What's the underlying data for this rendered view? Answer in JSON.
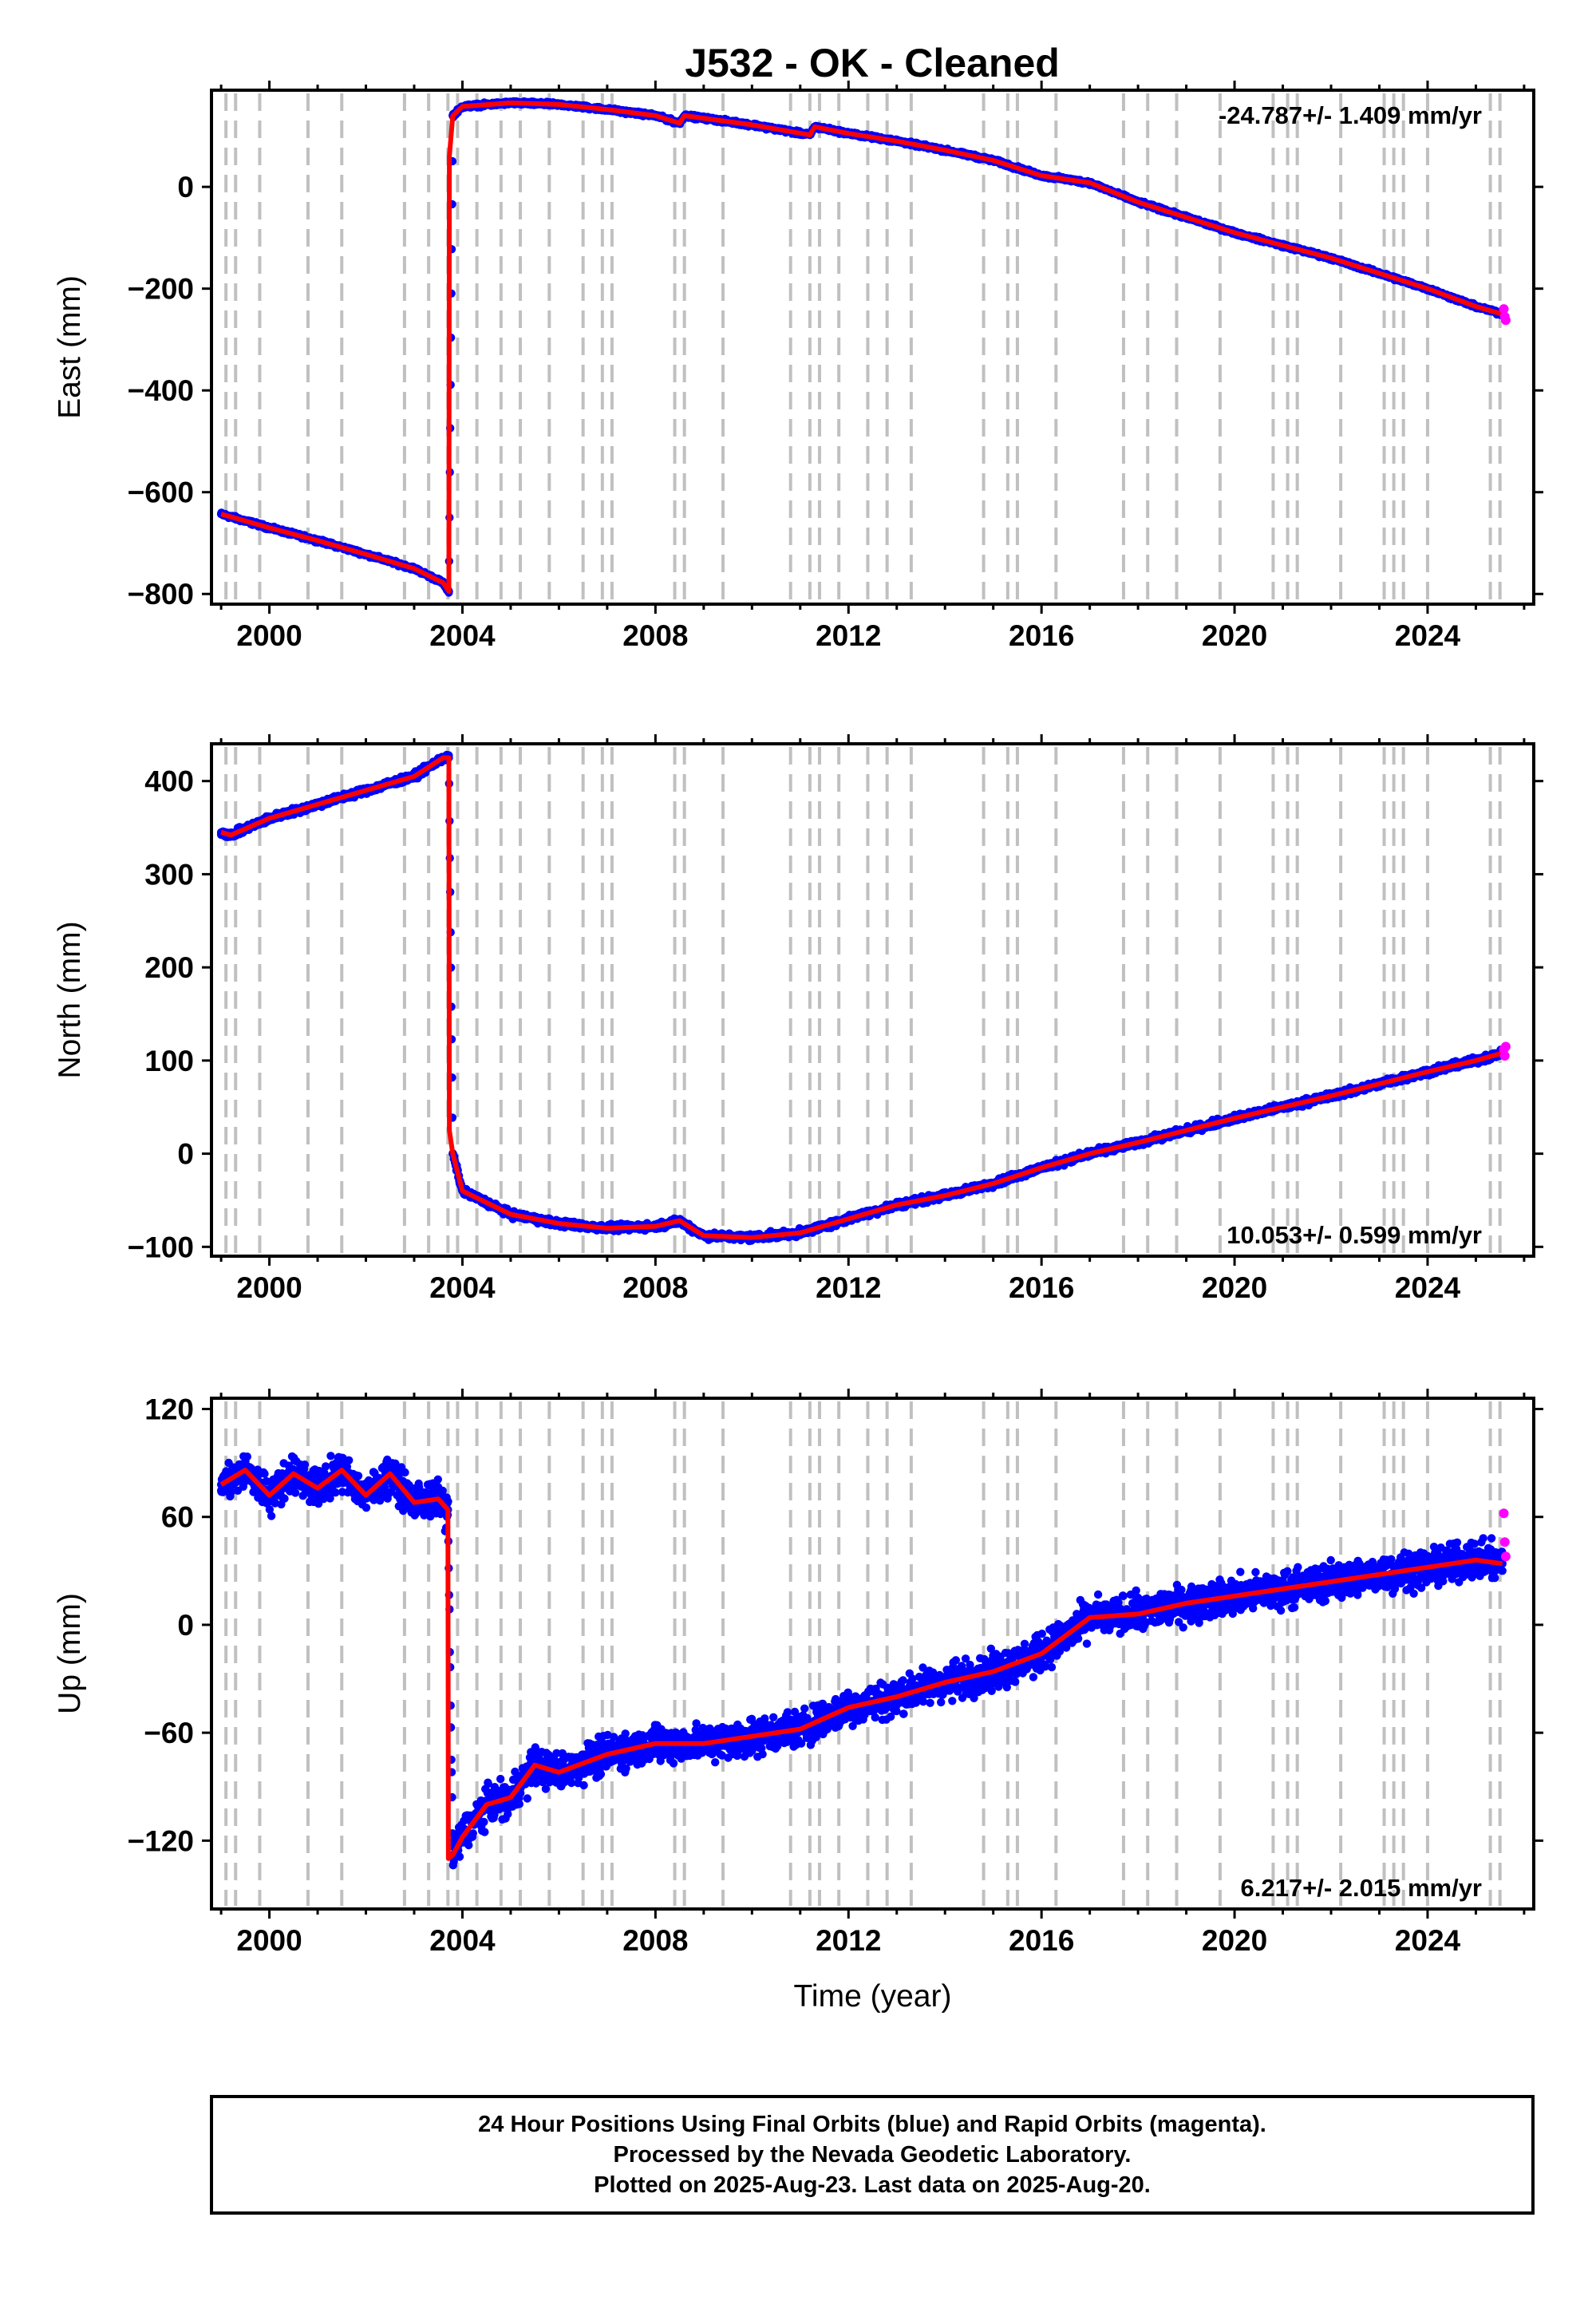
{
  "chart_data": [
    {
      "type": "scatter",
      "title": "J532  - OK - Cleaned",
      "xlabel": "",
      "ylabel": "East (mm)",
      "xlim": [
        1998.8,
        2026.2
      ],
      "ylim": [
        -820,
        190
      ],
      "x_ticks": [
        "2000",
        "2004",
        "2008",
        "2012",
        "2016",
        "2020",
        "2024"
      ],
      "y_ticks": [
        "0",
        "−200",
        "−400",
        "−600",
        "−800"
      ],
      "y_tick_values": [
        0,
        -200,
        -400,
        -600,
        -800
      ],
      "rate_label": "-24.787+/- 1.409 mm/yr",
      "rate_position": "top-right",
      "series": [
        {
          "name": "Final Orbits",
          "color": "#0000ff",
          "style": "points",
          "x": [
            1999.0,
            2000.0,
            2001.0,
            2002.0,
            2003.0,
            2003.6,
            2003.72,
            2003.8,
            2004.0,
            2005.0,
            2006.0,
            2007.0,
            2008.0,
            2008.5,
            2008.6,
            2010.0,
            2011.2,
            2011.3,
            2012.0,
            2013.0,
            2014.0,
            2015.0,
            2016.0,
            2017.0,
            2018.0,
            2019.0,
            2020.0,
            2021.0,
            2022.0,
            2023.0,
            2024.0,
            2025.0,
            2025.55
          ],
          "y": [
            -643,
            -670,
            -695,
            -722,
            -750,
            -778,
            -795,
            140,
            158,
            165,
            162,
            152,
            140,
            125,
            140,
            122,
            102,
            118,
            105,
            90,
            72,
            52,
            22,
            8,
            -30,
            -60,
            -90,
            -115,
            -140,
            -170,
            -200,
            -235,
            -250
          ]
        },
        {
          "name": "Rapid Orbits",
          "color": "#ff00ff",
          "style": "points",
          "x": [
            2025.58,
            2025.6,
            2025.62
          ],
          "y": [
            -240,
            -255,
            -262
          ]
        },
        {
          "name": "Model",
          "color": "#ff0000",
          "style": "line",
          "x": [
            1999.0,
            2000.0,
            2001.0,
            2002.0,
            2003.0,
            2003.6,
            2003.72,
            2003.73,
            2003.8,
            2004.0,
            2005.0,
            2006.0,
            2007.0,
            2008.0,
            2008.5,
            2008.6,
            2010.0,
            2011.2,
            2011.3,
            2012.0,
            2013.0,
            2014.0,
            2015.0,
            2016.0,
            2017.0,
            2018.0,
            2019.0,
            2020.0,
            2021.0,
            2022.0,
            2023.0,
            2024.0,
            2025.0,
            2025.55
          ],
          "y": [
            -643,
            -670,
            -695,
            -722,
            -750,
            -778,
            -795,
            60,
            140,
            158,
            165,
            162,
            152,
            140,
            125,
            140,
            122,
            102,
            118,
            105,
            90,
            72,
            52,
            22,
            8,
            -30,
            -60,
            -90,
            -115,
            -140,
            -170,
            -200,
            -235,
            -250
          ]
        }
      ],
      "vlines": [
        1999.1,
        1999.3,
        1999.8,
        2000.8,
        2001.5,
        2002.8,
        2003.3,
        2003.7,
        2003.9,
        2004.3,
        2004.8,
        2005.2,
        2005.8,
        2006.5,
        2006.9,
        2007.1,
        2008.4,
        2008.6,
        2009.4,
        2010.8,
        2011.2,
        2011.4,
        2011.8,
        2012.4,
        2012.8,
        2013.3,
        2014.8,
        2015.3,
        2015.5,
        2016.3,
        2017.7,
        2018.2,
        2018.8,
        2019.7,
        2020.8,
        2021.1,
        2021.3,
        2022.2,
        2023.1,
        2023.3,
        2023.5,
        2024.0,
        2025.3,
        2025.5
      ],
      "grid": false
    },
    {
      "type": "scatter",
      "xlabel": "",
      "ylabel": "North (mm)",
      "xlim": [
        1998.8,
        2026.2
      ],
      "ylim": [
        -110,
        440
      ],
      "x_ticks": [
        "2000",
        "2004",
        "2008",
        "2012",
        "2016",
        "2020",
        "2024"
      ],
      "y_ticks": [
        "400",
        "300",
        "200",
        "100",
        "0",
        "−100"
      ],
      "y_tick_values": [
        400,
        300,
        200,
        100,
        0,
        -100
      ],
      "rate_label": "10.053+/- 0.599 mm/yr",
      "rate_position": "bottom-right",
      "series": [
        {
          "name": "Final Orbits",
          "color": "#0000ff",
          "style": "points",
          "x": [
            1999.0,
            1999.2,
            2000.0,
            2001.0,
            2002.0,
            2003.0,
            2003.6,
            2003.72,
            2003.8,
            2004.0,
            2005.0,
            2006.0,
            2007.0,
            2008.0,
            2008.5,
            2009.0,
            2010.0,
            2011.0,
            2012.0,
            2013.0,
            2014.0,
            2015.0,
            2016.0,
            2017.0,
            2018.0,
            2019.0,
            2020.0,
            2021.0,
            2022.0,
            2023.0,
            2024.0,
            2025.0,
            2025.55
          ],
          "y": [
            345,
            342,
            360,
            375,
            390,
            405,
            425,
            425,
            0,
            -40,
            -65,
            -75,
            -80,
            -78,
            -72,
            -88,
            -90,
            -85,
            -70,
            -55,
            -45,
            -32,
            -15,
            0,
            12,
            25,
            38,
            50,
            62,
            75,
            88,
            100,
            108
          ]
        },
        {
          "name": "Rapid Orbits",
          "color": "#ff00ff",
          "style": "points",
          "x": [
            2025.58,
            2025.6,
            2025.62
          ],
          "y": [
            112,
            105,
            115
          ]
        },
        {
          "name": "Model",
          "color": "#ff0000",
          "style": "line",
          "x": [
            1999.0,
            1999.2,
            2000.0,
            2001.0,
            2002.0,
            2003.0,
            2003.6,
            2003.72,
            2003.73,
            2003.8,
            2004.0,
            2005.0,
            2006.0,
            2007.0,
            2008.0,
            2008.5,
            2009.0,
            2010.0,
            2011.0,
            2012.0,
            2013.0,
            2014.0,
            2015.0,
            2016.0,
            2017.0,
            2018.0,
            2019.0,
            2020.0,
            2021.0,
            2022.0,
            2023.0,
            2024.0,
            2025.0,
            2025.55
          ],
          "y": [
            345,
            342,
            360,
            375,
            390,
            405,
            425,
            425,
            25,
            0,
            -40,
            -65,
            -75,
            -80,
            -78,
            -72,
            -88,
            -90,
            -85,
            -70,
            -55,
            -45,
            -32,
            -15,
            0,
            12,
            25,
            38,
            50,
            62,
            75,
            88,
            100,
            108
          ]
        }
      ],
      "vlines": [
        1999.1,
        1999.3,
        1999.8,
        2000.8,
        2001.5,
        2002.8,
        2003.3,
        2003.7,
        2003.9,
        2004.3,
        2004.8,
        2005.2,
        2005.8,
        2006.5,
        2006.9,
        2007.1,
        2008.4,
        2008.6,
        2009.4,
        2010.8,
        2011.2,
        2011.4,
        2011.8,
        2012.4,
        2012.8,
        2013.3,
        2014.8,
        2015.3,
        2015.5,
        2016.3,
        2017.7,
        2018.2,
        2018.8,
        2019.7,
        2020.8,
        2021.1,
        2021.3,
        2022.2,
        2023.1,
        2023.3,
        2023.5,
        2024.0,
        2025.3,
        2025.5
      ],
      "grid": false
    },
    {
      "type": "scatter",
      "xlabel": "Time (year)",
      "ylabel": "Up (mm)",
      "xlim": [
        1998.8,
        2026.2
      ],
      "ylim": [
        -158,
        126
      ],
      "x_ticks": [
        "2000",
        "2004",
        "2008",
        "2012",
        "2016",
        "2020",
        "2024"
      ],
      "y_ticks": [
        "120",
        "60",
        "0",
        "−60",
        "−120"
      ],
      "y_tick_values": [
        120,
        60,
        0,
        -60,
        -120
      ],
      "rate_label": "6.217+/- 2.015 mm/yr",
      "rate_position": "bottom-right",
      "series": [
        {
          "name": "Final Orbits",
          "color": "#0000ff",
          "style": "points",
          "x": [
            1999.0,
            1999.5,
            2000.0,
            2000.5,
            2001.0,
            2001.5,
            2002.0,
            2002.5,
            2003.0,
            2003.5,
            2003.7,
            2003.8,
            2004.0,
            2004.5,
            2005.0,
            2005.5,
            2006.0,
            2007.0,
            2008.0,
            2009.0,
            2010.0,
            2011.0,
            2012.0,
            2013.0,
            2014.0,
            2015.0,
            2016.0,
            2017.0,
            2018.0,
            2019.0,
            2020.0,
            2021.0,
            2022.0,
            2023.0,
            2024.0,
            2025.0,
            2025.55
          ],
          "y": [
            78,
            86,
            72,
            84,
            76,
            86,
            72,
            84,
            68,
            70,
            64,
            -128,
            -118,
            -100,
            -96,
            -78,
            -82,
            -72,
            -66,
            -66,
            -62,
            -58,
            -46,
            -40,
            -32,
            -26,
            -16,
            4,
            6,
            12,
            16,
            20,
            24,
            28,
            32,
            36,
            34
          ]
        },
        {
          "name": "Rapid Orbits",
          "color": "#ff00ff",
          "style": "points",
          "x": [
            2025.58,
            2025.6,
            2025.62
          ],
          "y": [
            62,
            46,
            38
          ]
        },
        {
          "name": "Model",
          "color": "#ff0000",
          "style": "line",
          "x": [
            1999.0,
            1999.5,
            2000.0,
            2000.5,
            2001.0,
            2001.5,
            2002.0,
            2002.5,
            2003.0,
            2003.5,
            2003.7,
            2003.71,
            2003.8,
            2004.0,
            2004.5,
            2005.0,
            2005.5,
            2006.0,
            2007.0,
            2008.0,
            2009.0,
            2010.0,
            2011.0,
            2012.0,
            2013.0,
            2014.0,
            2015.0,
            2016.0,
            2017.0,
            2018.0,
            2019.0,
            2020.0,
            2021.0,
            2022.0,
            2023.0,
            2024.0,
            2025.0,
            2025.55
          ],
          "y": [
            78,
            86,
            72,
            84,
            76,
            86,
            72,
            84,
            68,
            70,
            64,
            -130,
            -128,
            -118,
            -100,
            -96,
            -78,
            -82,
            -72,
            -66,
            -66,
            -62,
            -58,
            -46,
            -40,
            -32,
            -26,
            -16,
            4,
            6,
            12,
            16,
            20,
            24,
            28,
            32,
            36,
            34
          ]
        }
      ],
      "vlines": [
        1999.1,
        1999.3,
        1999.8,
        2000.8,
        2001.5,
        2002.8,
        2003.3,
        2003.7,
        2003.9,
        2004.3,
        2004.8,
        2005.2,
        2005.8,
        2006.5,
        2006.9,
        2007.1,
        2008.4,
        2008.6,
        2009.4,
        2010.8,
        2011.2,
        2011.4,
        2011.8,
        2012.4,
        2012.8,
        2013.3,
        2014.8,
        2015.3,
        2015.5,
        2016.3,
        2017.7,
        2018.2,
        2018.8,
        2019.7,
        2020.8,
        2021.1,
        2021.3,
        2022.2,
        2023.1,
        2023.3,
        2023.5,
        2024.0,
        2025.3,
        2025.5
      ],
      "grid": false
    }
  ],
  "caption": {
    "line1": "24 Hour Positions Using Final Orbits (blue) and Rapid Orbits (magenta).",
    "line2": "Processed by the Nevada Geodetic Laboratory.",
    "line3": "Plotted on 2025-Aug-23. Last data on 2025-Aug-20."
  },
  "colors": {
    "final": "#0000ff",
    "rapid": "#ff00ff",
    "model": "#ff0000",
    "event_lines": "#c0c0c0"
  }
}
